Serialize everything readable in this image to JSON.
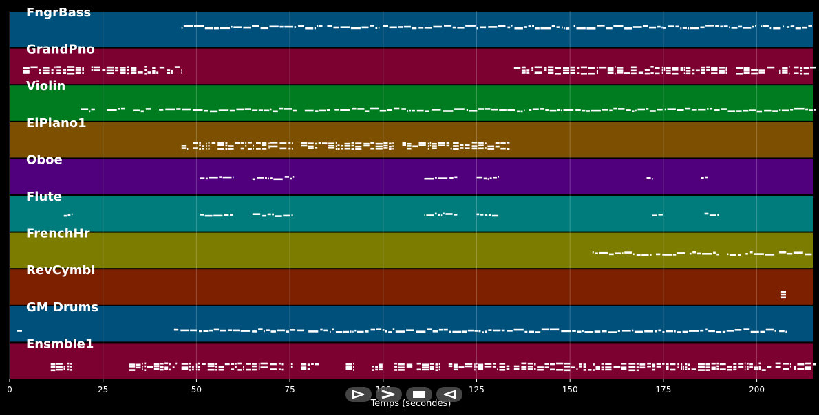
{
  "chart_data": {
    "type": "piano-roll",
    "xlabel": "Temps (secondes)",
    "xlim": [
      0,
      215
    ],
    "xticks": [
      0,
      25,
      50,
      75,
      100,
      125,
      150,
      175,
      200
    ],
    "grid": true,
    "tracks": [
      {
        "name": "FngrBass",
        "color": "#00507c",
        "segments": [
          [
            46,
            84
          ],
          [
            85,
            99
          ],
          [
            100,
            150
          ],
          [
            151,
            200
          ],
          [
            201,
            207
          ],
          [
            208,
            215
          ]
        ],
        "density": 0.5,
        "level": 0.3
      },
      {
        "name": "GrandPno",
        "color": "#7c0030",
        "segments": [
          [
            3.5,
            46
          ],
          [
            135,
            205
          ],
          [
            206,
            209
          ],
          [
            210,
            216
          ]
        ],
        "density": 0.9,
        "level": 0.4
      },
      {
        "name": "Violin",
        "color": "#007c20",
        "segments": [
          [
            19,
            23
          ],
          [
            26,
            31
          ],
          [
            33,
            38
          ],
          [
            40,
            77
          ],
          [
            79,
            86
          ],
          [
            87,
            101
          ],
          [
            101,
            138
          ],
          [
            139,
            216
          ]
        ],
        "density": 0.5,
        "level": 0.55
      },
      {
        "name": "ElPiano1",
        "color": "#7c5000",
        "segments": [
          [
            46,
            134
          ]
        ],
        "density": 0.95,
        "level": 0.45
      },
      {
        "name": "Oboe",
        "color": "#50007c",
        "segments": [
          [
            51,
            60
          ],
          [
            65,
            76
          ],
          [
            111,
            120
          ],
          [
            125,
            131
          ],
          [
            170.5,
            172
          ],
          [
            185,
            187
          ]
        ],
        "density": 0.6,
        "level": 0.4
      },
      {
        "name": "Flute",
        "color": "#007c7c",
        "segments": [
          [
            14.5,
            17
          ],
          [
            51,
            60
          ],
          [
            65,
            76
          ],
          [
            111,
            120
          ],
          [
            125,
            131
          ],
          [
            172,
            175
          ],
          [
            186,
            190
          ]
        ],
        "density": 0.6,
        "level": 0.4
      },
      {
        "name": "FrenchHr",
        "color": "#7c7c00",
        "segments": [
          [
            156,
            172
          ],
          [
            173,
            181
          ],
          [
            182,
            190
          ],
          [
            192,
            196
          ],
          [
            197,
            205
          ],
          [
            206,
            215
          ]
        ],
        "density": 0.6,
        "level": 0.45
      },
      {
        "name": "RevCymbl",
        "color": "#7c2000",
        "segments": [
          [
            206.5,
            208
          ]
        ],
        "density": 1.0,
        "level": 0.5
      },
      {
        "name": "GM Drums",
        "color": "#00507c",
        "segments": [
          [
            2,
            3.5
          ],
          [
            44,
            75
          ],
          [
            75,
            79
          ],
          [
            80,
            205
          ],
          [
            206,
            208
          ]
        ],
        "density": 0.7,
        "level": 0.55
      },
      {
        "name": "Ensmble1",
        "color": "#7c0030",
        "segments": [
          [
            11,
            17
          ],
          [
            32,
            45
          ],
          [
            46,
            76
          ],
          [
            78,
            83
          ],
          [
            90,
            92
          ],
          [
            97,
            100
          ],
          [
            103,
            108
          ],
          [
            109,
            134
          ],
          [
            135,
            204
          ],
          [
            205,
            209
          ],
          [
            210,
            216
          ]
        ],
        "density": 0.85,
        "level": 0.45
      }
    ]
  },
  "controls": [
    {
      "name": "play",
      "icon": "play-icon"
    },
    {
      "name": "forward",
      "icon": "fast-forward-icon"
    },
    {
      "name": "stop",
      "icon": "stop-icon"
    },
    {
      "name": "rewind",
      "icon": "rewind-icon"
    }
  ]
}
